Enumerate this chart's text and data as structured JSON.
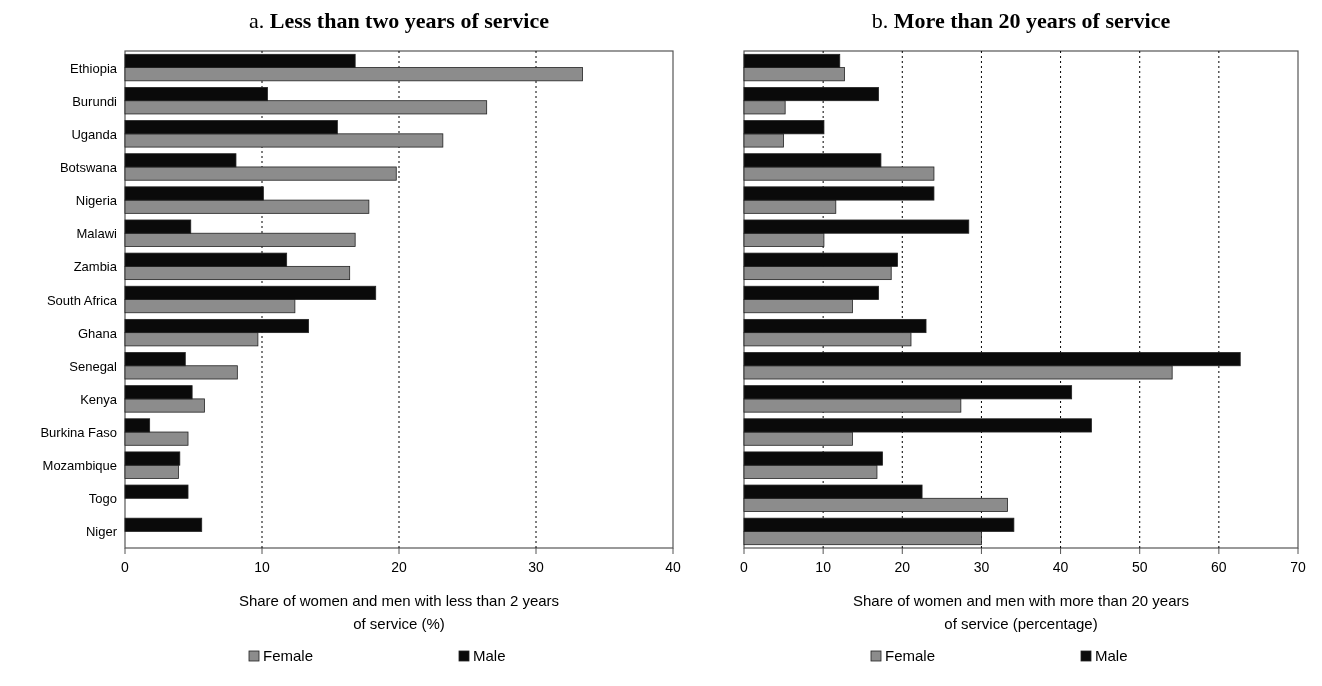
{
  "chart_data": [
    {
      "type": "bar",
      "orientation": "horizontal",
      "title": "a.  Less than two years of service",
      "xlabel": "Share of women and men with less than 2 years of service (%)",
      "categories": [
        "Ethiopia",
        "Burundi",
        "Uganda",
        "Botswana",
        "Nigeria",
        "Malawi",
        "Zambia",
        "South Africa",
        "Ghana",
        "Senegal",
        "Kenya",
        "Burkina Faso",
        "Mozambique",
        "Togo",
        "Niger"
      ],
      "series": [
        {
          "name": "Female",
          "color": "#8c8c8c",
          "values": [
            33.4,
            26.4,
            23.2,
            19.8,
            17.8,
            16.8,
            16.4,
            12.4,
            9.7,
            8.2,
            5.8,
            4.6,
            3.9,
            null,
            null
          ]
        },
        {
          "name": "Male",
          "color": "#0a0a0a",
          "values": [
            16.8,
            10.4,
            15.5,
            8.1,
            10.1,
            4.8,
            11.8,
            18.3,
            13.4,
            4.4,
            4.9,
            1.8,
            4.0,
            4.6,
            5.6
          ]
        }
      ],
      "xlim": [
        0,
        40
      ],
      "xticks": [
        0,
        10,
        20,
        30,
        40
      ],
      "grid": "x",
      "legend": "bottom"
    },
    {
      "type": "bar",
      "orientation": "horizontal",
      "title": "b.  More than 20 years of service",
      "xlabel": "Share of women and men with more than 20 years of service (percentage)",
      "categories": [
        null,
        null,
        null,
        null,
        null,
        null,
        null,
        null,
        null,
        null,
        null,
        null,
        null,
        null,
        null
      ],
      "series": [
        {
          "name": "Female",
          "color": "#8c8c8c",
          "values": [
            12.7,
            5.2,
            5.0,
            24.0,
            11.6,
            10.1,
            18.6,
            13.7,
            21.1,
            54.1,
            27.4,
            13.7,
            16.8,
            33.3,
            30.0
          ]
        },
        {
          "name": "Male",
          "color": "#0a0a0a",
          "values": [
            12.1,
            17.0,
            10.1,
            17.3,
            24.0,
            28.4,
            19.4,
            17.0,
            23.0,
            62.7,
            41.4,
            43.9,
            17.5,
            22.5,
            34.1
          ]
        }
      ],
      "xlim": [
        0,
        70
      ],
      "xticks": [
        0,
        10,
        20,
        30,
        40,
        50,
        60,
        70
      ],
      "grid": "x",
      "legend": "bottom"
    }
  ]
}
